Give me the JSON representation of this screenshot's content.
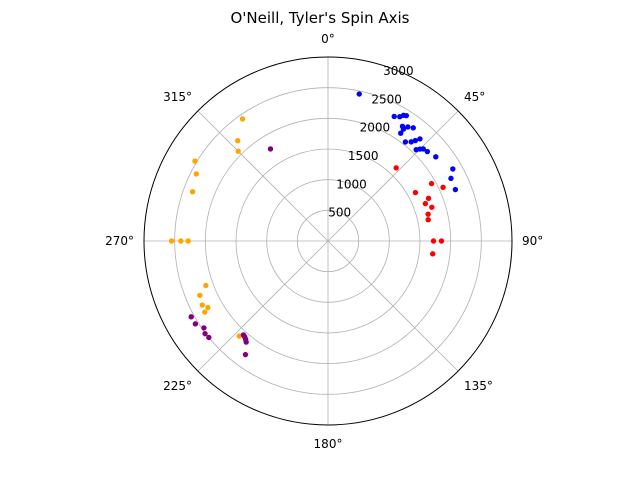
{
  "chart_data": {
    "type": "scatter",
    "projection": "polar",
    "title": "O'Neill, Tyler's Spin Axis",
    "theta_direction": "clockwise",
    "theta_zero": "top",
    "theta_ticks": [
      "0°",
      "45°",
      "90°",
      "135°",
      "180°",
      "225°",
      "270°",
      "315°"
    ],
    "theta_tick_degrees": [
      0,
      45,
      90,
      135,
      180,
      225,
      270,
      315
    ],
    "r_ticks": [
      500,
      1000,
      1500,
      2000,
      2500,
      3000
    ],
    "r_tick_labels": [
      "500",
      "1000",
      "1500",
      "2000",
      "2500",
      "3000"
    ],
    "r_lim": [
      0,
      3000
    ],
    "grid": true,
    "series": [
      {
        "color": "#0000ff",
        "points": [
          [
            12,
            2450
          ],
          [
            28,
            2300
          ],
          [
            30,
            2340
          ],
          [
            31,
            2390
          ],
          [
            32,
            2410
          ],
          [
            33,
            2230
          ],
          [
            34,
            2200
          ],
          [
            34,
            2120
          ],
          [
            35,
            2270
          ],
          [
            37,
            2310
          ],
          [
            38,
            2050
          ],
          [
            40,
            2110
          ],
          [
            41,
            2170
          ],
          [
            42,
            2240
          ],
          [
            44,
            2070
          ],
          [
            45,
            2120
          ],
          [
            46,
            2160
          ],
          [
            48,
            2180
          ],
          [
            52,
            2230
          ],
          [
            60,
            2350
          ],
          [
            63,
            2250
          ],
          [
            68,
            2240
          ]
        ]
      },
      {
        "color": "#ff0000",
        "points": [
          [
            43,
            1630
          ],
          [
            61,
            1930
          ],
          [
            61,
            1630
          ],
          [
            67,
            1780
          ],
          [
            69,
            1700
          ],
          [
            72,
            1780
          ],
          [
            75,
            1690
          ],
          [
            78,
            1670
          ],
          [
            90,
            1720
          ],
          [
            90,
            1850
          ],
          [
            97,
            1720
          ],
          [
            65,
            2070
          ]
        ]
      },
      {
        "color": "#ffa500",
        "points": [
          [
            325,
            2430
          ],
          [
            318,
            2200
          ],
          [
            315,
            2070
          ],
          [
            301,
            2530
          ],
          [
            297,
            2410
          ],
          [
            290,
            2350
          ],
          [
            270,
            2550
          ],
          [
            270,
            2400
          ],
          [
            270,
            2280
          ],
          [
            247,
            2270
          ],
          [
            250,
            2120
          ],
          [
            243,
            2300
          ],
          [
            241,
            2240
          ],
          [
            240,
            2320
          ],
          [
            223,
            2120
          ]
        ]
      },
      {
        "color": "#800080",
        "points": [
          [
            328,
            1770
          ],
          [
            241,
            2550
          ],
          [
            238,
            2550
          ],
          [
            235,
            2470
          ],
          [
            233,
            2510
          ],
          [
            231,
            2500
          ],
          [
            222,
            2060
          ],
          [
            221,
            2070
          ],
          [
            220,
            2090
          ],
          [
            219,
            2120
          ],
          [
            216,
            2290
          ]
        ]
      }
    ]
  }
}
